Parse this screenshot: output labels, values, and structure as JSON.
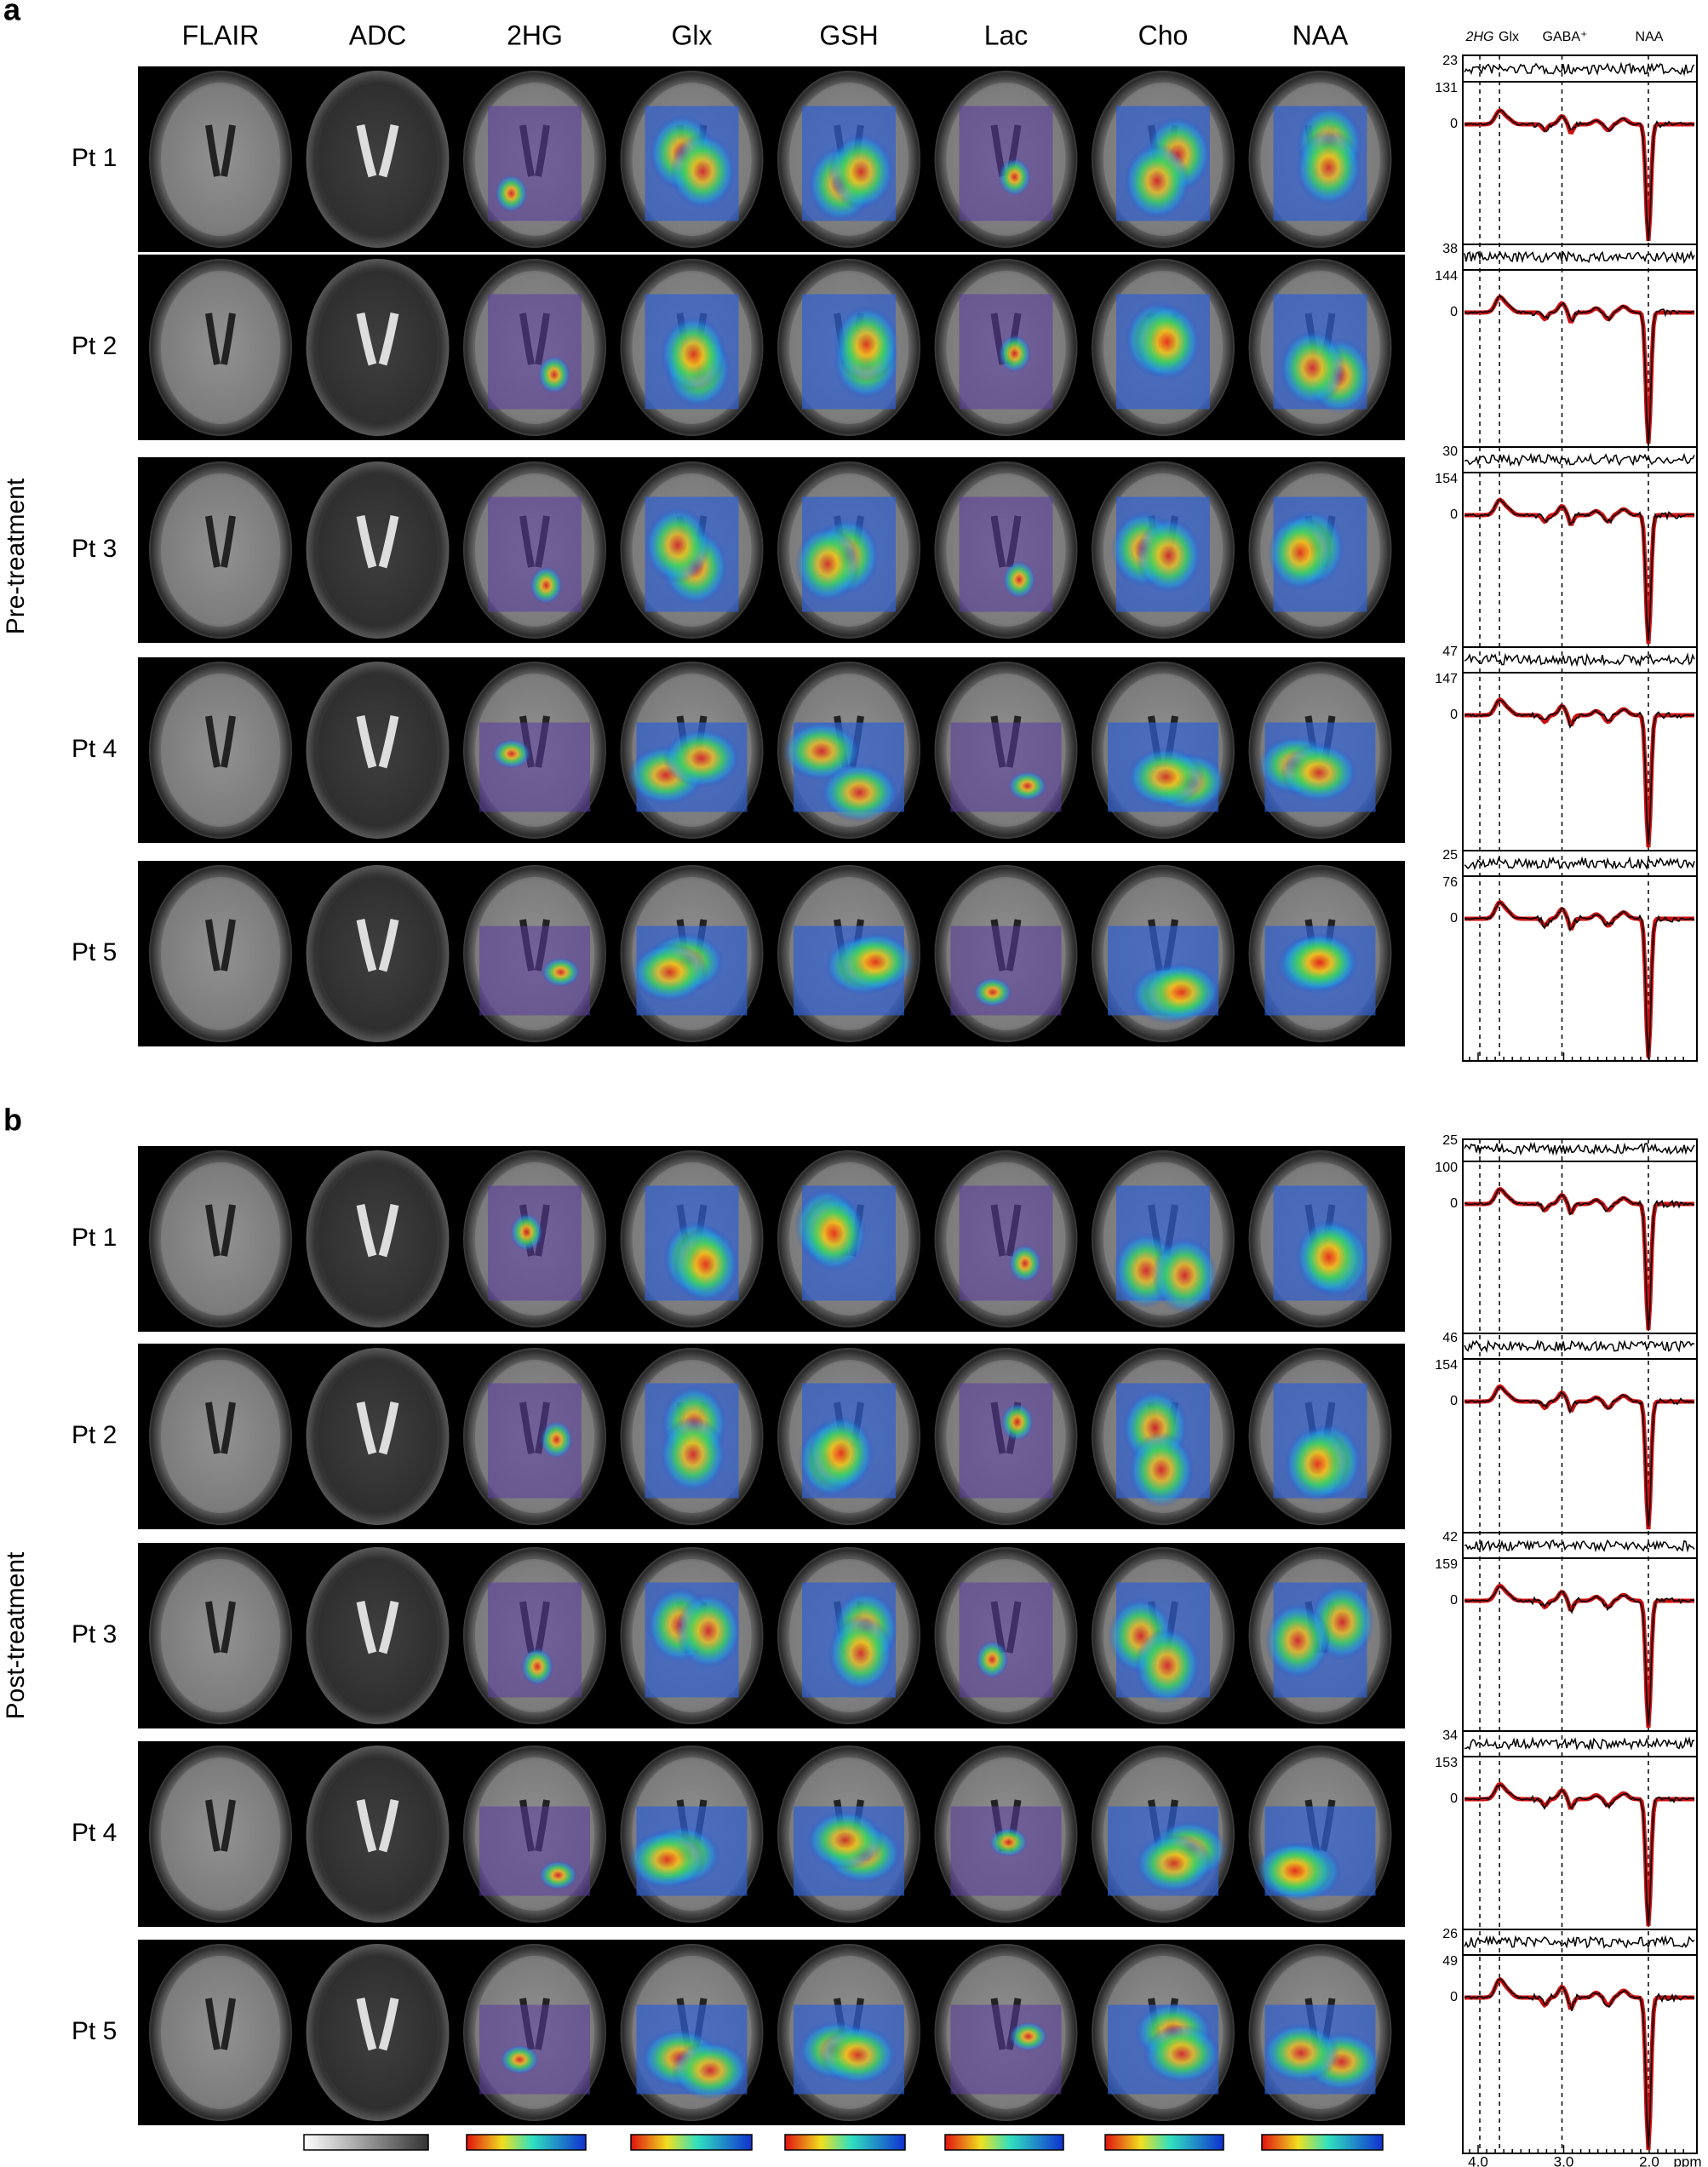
{
  "columns": [
    "FLAIR",
    "ADC",
    "2HG",
    "Glx",
    "GSH",
    "Lac",
    "Cho",
    "NAA"
  ],
  "spectrum_labels": [
    "2HG",
    "Glx",
    "GABA⁺",
    "NAA"
  ],
  "ppm_axis": {
    "ticks": [
      "4.0",
      "3.0",
      "2.0"
    ],
    "unit": "ppm"
  },
  "panels": [
    {
      "letter": "a",
      "group_label": "Pre-treatment",
      "rows": [
        {
          "label": "Pt 1",
          "residual_max": "23",
          "spectrum_max": "131",
          "baseline": "0"
        },
        {
          "label": "Pt 2",
          "residual_max": "38",
          "spectrum_max": "144",
          "baseline": "0"
        },
        {
          "label": "Pt 3",
          "residual_max": "30",
          "spectrum_max": "154",
          "baseline": "0"
        },
        {
          "label": "Pt 4",
          "residual_max": "47",
          "spectrum_max": "147",
          "baseline": "0"
        },
        {
          "label": "Pt 5",
          "residual_max": "25",
          "spectrum_max": "76",
          "baseline": "0"
        }
      ]
    },
    {
      "letter": "b",
      "group_label": "Post-treatment",
      "rows": [
        {
          "label": "Pt 1",
          "residual_max": "25",
          "spectrum_max": "100",
          "baseline": "0"
        },
        {
          "label": "Pt 2",
          "residual_max": "46",
          "spectrum_max": "154",
          "baseline": "0"
        },
        {
          "label": "Pt 3",
          "residual_max": "42",
          "spectrum_max": "159",
          "baseline": "0"
        },
        {
          "label": "Pt 4",
          "residual_max": "34",
          "spectrum_max": "153",
          "baseline": "0"
        },
        {
          "label": "Pt 5",
          "residual_max": "26",
          "spectrum_max": "49",
          "baseline": "0"
        }
      ]
    }
  ]
}
